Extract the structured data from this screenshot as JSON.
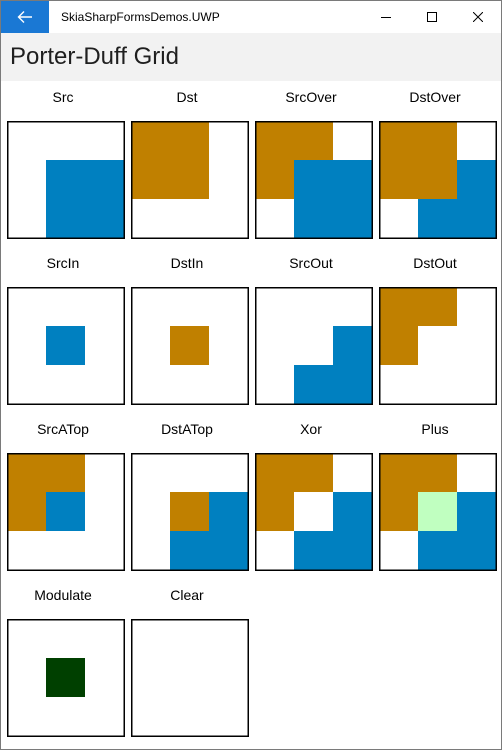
{
  "window": {
    "app_title": "SkiaSharpFormsDemos.UWP"
  },
  "icons": {
    "back": "back-arrow-icon",
    "minimize": "minimize-icon",
    "maximize": "maximize-icon",
    "close": "close-icon"
  },
  "page": {
    "title": "Porter-Duff Grid"
  },
  "colors": {
    "titlebar_back_button": "#1a78d4",
    "header_bg": "#f2f2f2",
    "dst_color": "#c08000",
    "src_color": "#0080c0",
    "plus_overlap": "#c0ffc0",
    "modulate_overlap": "#004000",
    "border": "#000000"
  },
  "modes": [
    {
      "name": "Src"
    },
    {
      "name": "Dst"
    },
    {
      "name": "SrcOver"
    },
    {
      "name": "DstOver"
    },
    {
      "name": "SrcIn"
    },
    {
      "name": "DstIn"
    },
    {
      "name": "SrcOut"
    },
    {
      "name": "DstOut"
    },
    {
      "name": "SrcATop"
    },
    {
      "name": "DstATop"
    },
    {
      "name": "Xor"
    },
    {
      "name": "Plus"
    },
    {
      "name": "Modulate"
    },
    {
      "name": "Clear"
    }
  ]
}
